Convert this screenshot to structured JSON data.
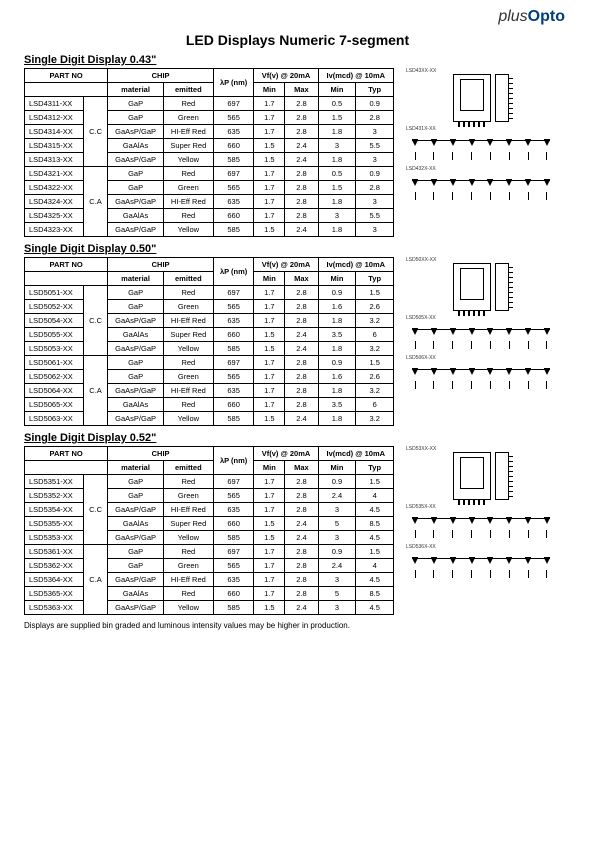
{
  "brand": {
    "prefix": "plus",
    "name": "Opto"
  },
  "title": "LED Displays Numeric 7-segment",
  "footnote": "Displays are supplied bin graded and luminous intensity values may be higher in production.",
  "headers": {
    "part": "PART NO",
    "chip": "CHIP",
    "wavelength": "λP (nm)",
    "vf": "Vf(v) @ 20mA",
    "iv": "Iv(mcd) @ 10mA",
    "material": "material",
    "emitted": "emitted",
    "min": "Min",
    "max": "Max",
    "typ": "Typ"
  },
  "sections": [
    {
      "heading": "Single Digit Display 0.43\"",
      "rows": [
        {
          "part": "LSD4311-XX",
          "cfg": "C.C",
          "cfg_span": 5,
          "material": "GaP",
          "emitted": "Red",
          "wl": "697",
          "vfmin": "1.7",
          "vfmax": "2.8",
          "ivmin": "0.5",
          "ivtyp": "0.9"
        },
        {
          "part": "LSD4312-XX",
          "material": "GaP",
          "emitted": "Green",
          "wl": "565",
          "vfmin": "1.7",
          "vfmax": "2.8",
          "ivmin": "1.5",
          "ivtyp": "2.8"
        },
        {
          "part": "LSD4314-XX",
          "material": "GaAsP/GaP",
          "emitted": "HI-Eff Red",
          "wl": "635",
          "vfmin": "1.7",
          "vfmax": "2.8",
          "ivmin": "1.8",
          "ivtyp": "3"
        },
        {
          "part": "LSD4315-XX",
          "material": "GaAlAs",
          "emitted": "Super Red",
          "wl": "660",
          "vfmin": "1.5",
          "vfmax": "2.4",
          "ivmin": "3",
          "ivtyp": "5.5"
        },
        {
          "part": "LSD4313-XX",
          "material": "GaAsP/GaP",
          "emitted": "Yellow",
          "wl": "585",
          "vfmin": "1.5",
          "vfmax": "2.4",
          "ivmin": "1.8",
          "ivtyp": "3"
        },
        {
          "part": "LSD4321-XX",
          "cfg": "C.A",
          "cfg_span": 5,
          "material": "GaP",
          "emitted": "Red",
          "wl": "697",
          "vfmin": "1.7",
          "vfmax": "2.8",
          "ivmin": "0.5",
          "ivtyp": "0.9"
        },
        {
          "part": "LSD4322-XX",
          "material": "GaP",
          "emitted": "Green",
          "wl": "565",
          "vfmin": "1.7",
          "vfmax": "2.8",
          "ivmin": "1.5",
          "ivtyp": "2.8"
        },
        {
          "part": "LSD4324-XX",
          "material": "GaAsP/GaP",
          "emitted": "HI-Eff Red",
          "wl": "635",
          "vfmin": "1.7",
          "vfmax": "2.8",
          "ivmin": "1.8",
          "ivtyp": "3"
        },
        {
          "part": "LSD4325-XX",
          "material": "GaAlAs",
          "emitted": "Red",
          "wl": "660",
          "vfmin": "1.7",
          "vfmax": "2.8",
          "ivmin": "3",
          "ivtyp": "5.5"
        },
        {
          "part": "LSD4323-XX",
          "material": "GaAsP/GaP",
          "emitted": "Yellow",
          "wl": "585",
          "vfmin": "1.5",
          "vfmax": "2.4",
          "ivmin": "1.8",
          "ivtyp": "3"
        }
      ]
    },
    {
      "heading": "Single Digit Display 0.50\"",
      "rows": [
        {
          "part": "LSD5051-XX",
          "cfg": "C.C",
          "cfg_span": 5,
          "material": "GaP",
          "emitted": "Red",
          "wl": "697",
          "vfmin": "1.7",
          "vfmax": "2.8",
          "ivmin": "0.9",
          "ivtyp": "1.5"
        },
        {
          "part": "LSD5052-XX",
          "material": "GaP",
          "emitted": "Green",
          "wl": "565",
          "vfmin": "1.7",
          "vfmax": "2.8",
          "ivmin": "1.6",
          "ivtyp": "2.6"
        },
        {
          "part": "LSD5054-XX",
          "material": "GaAsP/GaP",
          "emitted": "HI-Eff Red",
          "wl": "635",
          "vfmin": "1.7",
          "vfmax": "2.8",
          "ivmin": "1.8",
          "ivtyp": "3.2"
        },
        {
          "part": "LSD5055-XX",
          "material": "GaAlAs",
          "emitted": "Super Red",
          "wl": "660",
          "vfmin": "1.5",
          "vfmax": "2.4",
          "ivmin": "3.5",
          "ivtyp": "6"
        },
        {
          "part": "LSD5053-XX",
          "material": "GaAsP/GaP",
          "emitted": "Yellow",
          "wl": "585",
          "vfmin": "1.5",
          "vfmax": "2.4",
          "ivmin": "1.8",
          "ivtyp": "3.2"
        },
        {
          "part": "LSD5061-XX",
          "cfg": "C.A",
          "cfg_span": 5,
          "material": "GaP",
          "emitted": "Red",
          "wl": "697",
          "vfmin": "1.7",
          "vfmax": "2.8",
          "ivmin": "0.9",
          "ivtyp": "1.5"
        },
        {
          "part": "LSD5062-XX",
          "material": "GaP",
          "emitted": "Green",
          "wl": "565",
          "vfmin": "1.7",
          "vfmax": "2.8",
          "ivmin": "1.6",
          "ivtyp": "2.6"
        },
        {
          "part": "LSD5064-XX",
          "material": "GaAsP/GaP",
          "emitted": "HI-Eff Red",
          "wl": "635",
          "vfmin": "1.7",
          "vfmax": "2.8",
          "ivmin": "1.8",
          "ivtyp": "3.2"
        },
        {
          "part": "LSD5065-XX",
          "material": "GaAlAs",
          "emitted": "Red",
          "wl": "660",
          "vfmin": "1.7",
          "vfmax": "2.8",
          "ivmin": "3.5",
          "ivtyp": "6"
        },
        {
          "part": "LSD5063-XX",
          "material": "GaAsP/GaP",
          "emitted": "Yellow",
          "wl": "585",
          "vfmin": "1.5",
          "vfmax": "2.4",
          "ivmin": "1.8",
          "ivtyp": "3.2"
        }
      ]
    },
    {
      "heading": "Single Digit Display 0.52\"",
      "rows": [
        {
          "part": "LSD5351-XX",
          "cfg": "C.C",
          "cfg_span": 5,
          "material": "GaP",
          "emitted": "Red",
          "wl": "697",
          "vfmin": "1.7",
          "vfmax": "2.8",
          "ivmin": "0.9",
          "ivtyp": "1.5"
        },
        {
          "part": "LSD5352-XX",
          "material": "GaP",
          "emitted": "Green",
          "wl": "565",
          "vfmin": "1.7",
          "vfmax": "2.8",
          "ivmin": "2.4",
          "ivtyp": "4"
        },
        {
          "part": "LSD5354-XX",
          "material": "GaAsP/GaP",
          "emitted": "HI-Eff Red",
          "wl": "635",
          "vfmin": "1.7",
          "vfmax": "2.8",
          "ivmin": "3",
          "ivtyp": "4.5"
        },
        {
          "part": "LSD5355-XX",
          "material": "GaAlAs",
          "emitted": "Super Red",
          "wl": "660",
          "vfmin": "1.5",
          "vfmax": "2.4",
          "ivmin": "5",
          "ivtyp": "8.5"
        },
        {
          "part": "LSD5353-XX",
          "material": "GaAsP/GaP",
          "emitted": "Yellow",
          "wl": "585",
          "vfmin": "1.5",
          "vfmax": "2.4",
          "ivmin": "3",
          "ivtyp": "4.5"
        },
        {
          "part": "LSD5361-XX",
          "cfg": "C.A",
          "cfg_span": 5,
          "material": "GaP",
          "emitted": "Red",
          "wl": "697",
          "vfmin": "1.7",
          "vfmax": "2.8",
          "ivmin": "0.9",
          "ivtyp": "1.5"
        },
        {
          "part": "LSD5362-XX",
          "material": "GaP",
          "emitted": "Green",
          "wl": "565",
          "vfmin": "1.7",
          "vfmax": "2.8",
          "ivmin": "2.4",
          "ivtyp": "4"
        },
        {
          "part": "LSD5364-XX",
          "material": "GaAsP/GaP",
          "emitted": "HI-Eff Red",
          "wl": "635",
          "vfmin": "1.7",
          "vfmax": "2.8",
          "ivmin": "3",
          "ivtyp": "4.5"
        },
        {
          "part": "LSD5365-XX",
          "material": "GaAlAs",
          "emitted": "Red",
          "wl": "660",
          "vfmin": "1.7",
          "vfmax": "2.8",
          "ivmin": "5",
          "ivtyp": "8.5"
        },
        {
          "part": "LSD5363-XX",
          "material": "GaAsP/GaP",
          "emitted": "Yellow",
          "wl": "585",
          "vfmin": "1.5",
          "vfmax": "2.4",
          "ivmin": "3",
          "ivtyp": "4.5"
        }
      ]
    }
  ],
  "diagram_labels": {
    "s0a": "LSD43XX-XX",
    "s0b": "LSD432X-XX",
    "s0c": "LSD431X-XX",
    "s1a": "LSD50XX-XX",
    "s1b": "LSD506X-XX",
    "s1c": "LSD505X-XX",
    "s2a": "LSD53XX-XX",
    "s2b": "LSD536X-XX",
    "s2c": "LSD535X-XX"
  }
}
